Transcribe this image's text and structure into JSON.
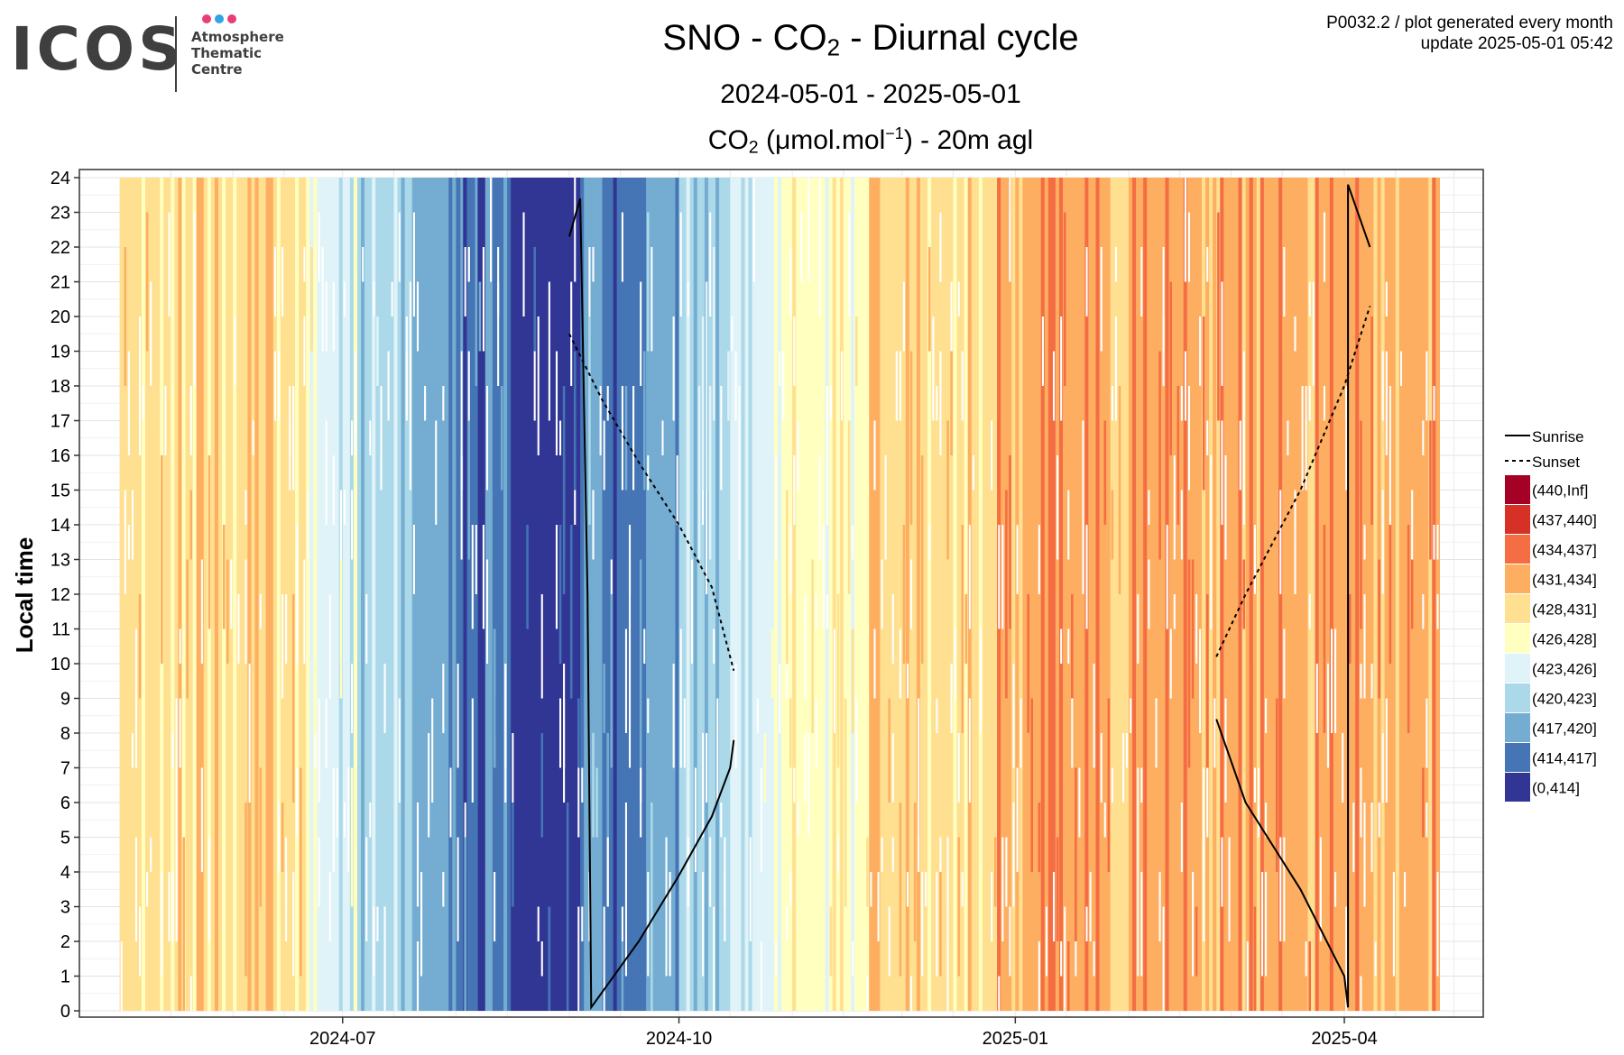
{
  "logo": {
    "word": "ICOS",
    "line1": "Atmosphere",
    "line2": "Thematic",
    "line3": "Centre",
    "dot_colors": [
      "#e83e78",
      "#2fa4e7",
      "#e83e78"
    ]
  },
  "header": {
    "title_pre": "SNO - CO",
    "title_sub": "2",
    "title_post": " - Diurnal cycle",
    "date_range": "2024-05-01 - 2025-05-01",
    "var_pre": "CO",
    "var_sub": "2",
    "var_mid": " (μmol.mol",
    "var_sup": "−1",
    "var_post": ") - 20m agl"
  },
  "meta": {
    "line1": "P0032.2 / plot generated every month",
    "line2": "update  2025-05-01 05:42"
  },
  "chart_data": {
    "type": "heatmap",
    "xlabel": "",
    "ylabel": "Local time",
    "x_range": [
      "2024-05-01",
      "2025-05-01"
    ],
    "x_ticks": [
      "2024-07",
      "2024-10",
      "2025-01",
      "2025-04"
    ],
    "y_ticks": [
      0,
      1,
      2,
      3,
      4,
      5,
      6,
      7,
      8,
      9,
      10,
      11,
      12,
      13,
      14,
      15,
      16,
      17,
      18,
      19,
      20,
      21,
      22,
      23,
      24
    ],
    "ylim": [
      0,
      24
    ],
    "grid": true,
    "legend_position": "right",
    "legend": {
      "lines": [
        {
          "label": "Sunrise",
          "style": "solid"
        },
        {
          "label": "Sunset",
          "style": "dotted"
        }
      ],
      "bins": [
        {
          "label": "(440,Inf]",
          "color": "#a50026"
        },
        {
          "label": "(437,440]",
          "color": "#d73027"
        },
        {
          "label": "(434,437]",
          "color": "#f46d43"
        },
        {
          "label": "(431,434]",
          "color": "#fdae61"
        },
        {
          "label": "(428,431]",
          "color": "#fee090"
        },
        {
          "label": "(426,428]",
          "color": "#ffffbf"
        },
        {
          "label": "(423,426]",
          "color": "#e0f3f8"
        },
        {
          "label": "(420,423]",
          "color": "#abd9e9"
        },
        {
          "label": "(417,420]",
          "color": "#74add1"
        },
        {
          "label": "(414,417]",
          "color": "#4575b4"
        },
        {
          "label": "(0,414]",
          "color": "#313695"
        }
      ]
    },
    "daily_bins": [
      {
        "from": "2024-05-01",
        "to": "2024-06-05",
        "bin": "(428,431]"
      },
      {
        "from": "2024-06-05",
        "to": "2024-06-20",
        "bin": "(428,431]"
      },
      {
        "from": "2024-06-20",
        "to": "2024-06-25",
        "bin": "(426,428]"
      },
      {
        "from": "2024-06-25",
        "to": "2024-07-05",
        "bin": "(423,426]"
      },
      {
        "from": "2024-07-05",
        "to": "2024-07-17",
        "bin": "(420,423]"
      },
      {
        "from": "2024-07-17",
        "to": "2024-08-01",
        "bin": "(417,420]"
      },
      {
        "from": "2024-08-01",
        "to": "2024-08-16",
        "bin": "(414,417]"
      },
      {
        "from": "2024-08-16",
        "to": "2024-08-28",
        "bin": "(0,414]"
      },
      {
        "from": "2024-08-28",
        "to": "2024-09-04",
        "bin": "(0,414]"
      },
      {
        "from": "2024-09-04",
        "to": "2024-09-09",
        "bin": "(417,420]"
      },
      {
        "from": "2024-09-09",
        "to": "2024-09-22",
        "bin": "(414,417]"
      },
      {
        "from": "2024-09-22",
        "to": "2024-10-01",
        "bin": "(417,420]"
      },
      {
        "from": "2024-10-01",
        "to": "2024-10-16",
        "bin": "(420,423]"
      },
      {
        "from": "2024-10-16",
        "to": "2024-10-30",
        "bin": "(423,426]"
      },
      {
        "from": "2024-10-30",
        "to": "2024-11-22",
        "bin": "(426,428]"
      },
      {
        "from": "2024-11-22",
        "to": "2024-12-27",
        "bin": "(428,431]"
      },
      {
        "from": "2024-12-27",
        "to": "2025-01-27",
        "bin": "(431,434]"
      },
      {
        "from": "2025-01-27",
        "to": "2025-02-01",
        "bin": "(428,431]"
      },
      {
        "from": "2025-02-01",
        "to": "2025-04-27",
        "bin": "(431,434]"
      }
    ],
    "sunrise": [
      {
        "date": "2024-09-01",
        "hour": 22.3
      },
      {
        "date": "2024-09-04",
        "hour": 23.4
      },
      {
        "date": "2024-09-06",
        "hour": 12.0
      },
      {
        "date": "2024-09-07",
        "hour": 0.1
      },
      {
        "date": "2024-09-20",
        "hour": 2.0
      },
      {
        "date": "2024-10-01",
        "hour": 3.9
      },
      {
        "date": "2024-10-10",
        "hour": 5.6
      },
      {
        "date": "2024-10-15",
        "hour": 7.0
      },
      {
        "date": "2024-10-16",
        "hour": 7.8
      },
      {
        "date": "2025-02-25",
        "hour": 8.4
      },
      {
        "date": "2025-03-05",
        "hour": 6.0
      },
      {
        "date": "2025-03-20",
        "hour": 3.5
      },
      {
        "date": "2025-04-01",
        "hour": 1.0
      },
      {
        "date": "2025-04-02",
        "hour": 0.1
      },
      {
        "date": "2025-04-02",
        "hour": 23.8
      },
      {
        "date": "2025-04-08",
        "hour": 22.0
      }
    ],
    "sunset": [
      {
        "date": "2024-09-01",
        "hour": 19.5
      },
      {
        "date": "2024-09-10",
        "hour": 17.6
      },
      {
        "date": "2024-09-20",
        "hour": 15.8
      },
      {
        "date": "2024-10-01",
        "hour": 14.0
      },
      {
        "date": "2024-10-10",
        "hour": 12.2
      },
      {
        "date": "2024-10-16",
        "hour": 9.8
      },
      {
        "date": "2025-02-25",
        "hour": 10.2
      },
      {
        "date": "2025-03-05",
        "hour": 12.0
      },
      {
        "date": "2025-03-20",
        "hour": 15.0
      },
      {
        "date": "2025-04-01",
        "hour": 18.0
      },
      {
        "date": "2025-04-08",
        "hour": 20.3
      }
    ]
  }
}
